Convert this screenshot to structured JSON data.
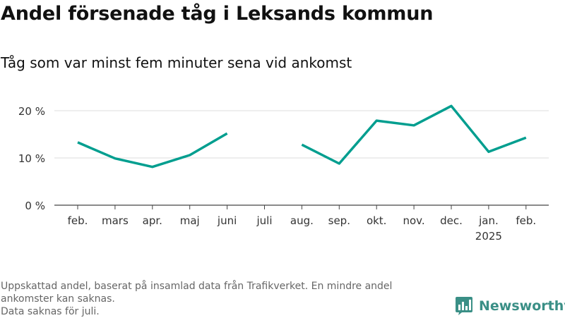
{
  "header": {
    "title": "Andel försenade tåg i Leksands kommun",
    "subtitle": "Tåg som var minst fem minuter sena vid ankomst"
  },
  "footnote": {
    "line1": "Uppskattad andel, baserat på insamlad data från Trafikverket. En mindre andel ankomster kan saknas.",
    "line2": "Data saknas för juli."
  },
  "brand": {
    "name": "Newsworthy",
    "logo_icon": "bar-chart-icon",
    "color": "#3a8f86"
  },
  "chart_data": {
    "type": "line",
    "categories": [
      "feb.",
      "mars",
      "apr.",
      "maj",
      "juni",
      "juli",
      "aug.",
      "sep.",
      "okt.",
      "nov.",
      "dec.",
      "jan.",
      "feb."
    ],
    "year_labels": [
      "",
      "",
      "",
      "",
      "",
      "",
      "",
      "",
      "",
      "",
      "",
      "2025",
      ""
    ],
    "series": [
      {
        "values": [
          13.3,
          9.9,
          8.1,
          10.6,
          15.2,
          null,
          12.8,
          8.8,
          17.9,
          16.9,
          21.0,
          11.3,
          14.3
        ],
        "color": "#009e8f"
      }
    ],
    "yticks": [
      {
        "value": 0,
        "label": "0 %"
      },
      {
        "value": 10,
        "label": "10 %"
      },
      {
        "value": 20,
        "label": "20 %"
      }
    ],
    "ylim": [
      0,
      22
    ],
    "grid": true,
    "xlabel": "",
    "ylabel": ""
  }
}
